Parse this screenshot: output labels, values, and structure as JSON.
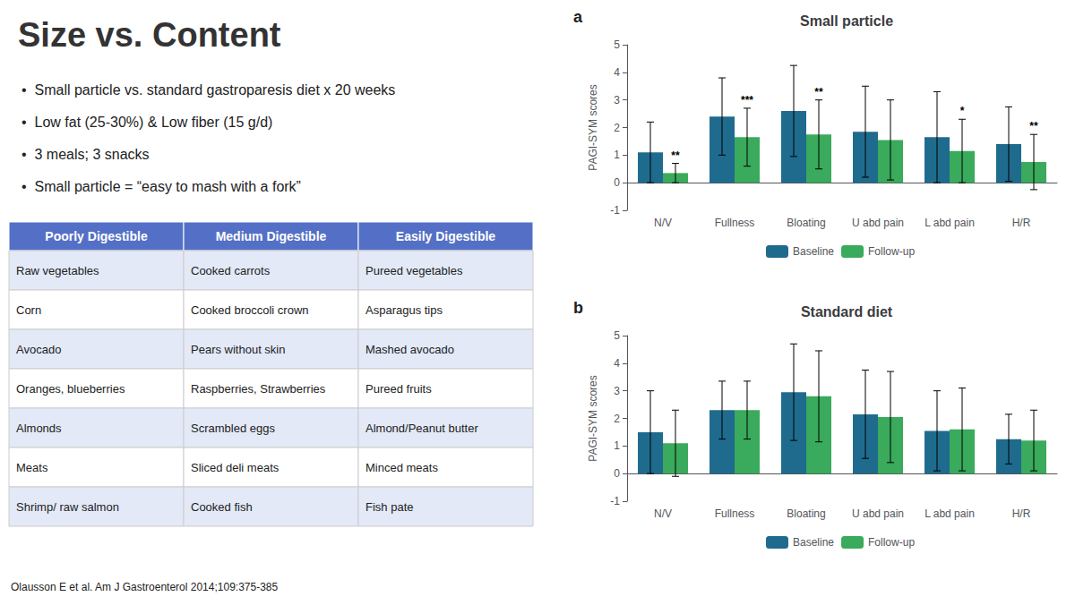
{
  "title": "Size vs. Content",
  "annotations": [
    "•  Small particle vs. standard gastroparesis diet x 20 weeks",
    "•  Low fat (25-30%) & Low fiber (15 g/d)",
    "•  3 meals; 3 snacks",
    "•  Small particle = “easy to mash with a fork”"
  ],
  "table": {
    "headers": [
      "Poorly Digestible",
      "Medium Digestible",
      "Easily Digestible"
    ],
    "rows": [
      [
        "Raw vegetables",
        "Cooked carrots",
        "Pureed vegetables"
      ],
      [
        "Corn",
        "Cooked broccoli crown",
        "Asparagus tips"
      ],
      [
        "Avocado",
        "Pears without skin",
        "Mashed avocado"
      ],
      [
        "Oranges, blueberries",
        "Raspberries, Strawberries",
        "Pureed fruits"
      ],
      [
        "Almonds",
        "Scrambled eggs",
        "Almond/Peanut butter"
      ],
      [
        "Meats",
        "Sliced deli meats",
        "Minced meats"
      ],
      [
        "Shrimp/ raw salmon",
        "Cooked fish",
        "Fish pate"
      ]
    ]
  },
  "citation": "Olausson E et al. Am J Gastroenterol 2014;109:375-385",
  "chart_data": [
    {
      "type": "bar",
      "title": "Small particle",
      "annotations": [
        "a"
      ],
      "categories": [
        "N/V",
        "Fullness",
        "Bloating",
        "U abd pain",
        "L abd pain",
        "H/R"
      ],
      "series": [
        {
          "name": "Baseline",
          "color": "#1f6b8e",
          "values": [
            1.1,
            2.4,
            2.6,
            1.85,
            1.65,
            1.4
          ],
          "errors": [
            1.1,
            1.4,
            1.65,
            1.65,
            1.65,
            1.35
          ]
        },
        {
          "name": "Follow-up",
          "color": "#3aaa5c",
          "values": [
            0.35,
            1.65,
            1.75,
            1.55,
            1.15,
            0.75
          ],
          "errors": [
            0.35,
            1.05,
            1.25,
            1.45,
            1.15,
            1.0
          ],
          "significance": [
            "**",
            "***",
            "**",
            null,
            "*",
            "**"
          ]
        }
      ],
      "ylabel": "PAGI-SYM scores",
      "ylim": [
        -1,
        5
      ],
      "yticks": [
        -1,
        0,
        1,
        2,
        3,
        4,
        5
      ],
      "grid": false,
      "legend": "bottom"
    },
    {
      "type": "bar",
      "title": "Standard diet",
      "annotations": [
        "b"
      ],
      "categories": [
        "N/V",
        "Fullness",
        "Bloating",
        "U abd pain",
        "L abd pain",
        "H/R"
      ],
      "series": [
        {
          "name": "Baseline",
          "color": "#1f6b8e",
          "values": [
            1.5,
            2.3,
            2.95,
            2.15,
            1.55,
            1.25
          ],
          "errors": [
            1.5,
            1.05,
            1.75,
            1.6,
            1.45,
            0.9
          ]
        },
        {
          "name": "Follow-up",
          "color": "#3aaa5c",
          "values": [
            1.1,
            2.3,
            2.8,
            2.05,
            1.6,
            1.2
          ],
          "errors": [
            1.2,
            1.05,
            1.65,
            1.65,
            1.5,
            1.1
          ]
        }
      ],
      "ylabel": "PAGI-SYM scores",
      "ylim": [
        -1,
        5
      ],
      "yticks": [
        -1,
        0,
        1,
        2,
        3,
        4,
        5
      ],
      "grid": false,
      "legend": "bottom"
    }
  ]
}
